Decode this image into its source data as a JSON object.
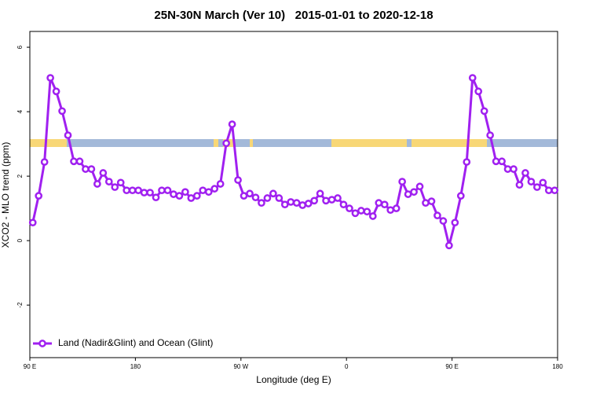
{
  "chart_data": {
    "type": "line",
    "title": "25N-30N March (Ver 10)   2015-01-01 to 2020-12-18",
    "xlabel": "Longitude (deg E)",
    "ylabel": "XCO2 - MLO trend (ppm)",
    "xlim": [
      90,
      540
    ],
    "xticks": [
      {
        "value": 90,
        "label": "90 E"
      },
      180,
      {
        "value": 270,
        "label": "90 W"
      },
      {
        "value": 360,
        "label": "0"
      },
      {
        "value": 450,
        "label": "90 E"
      },
      {
        "value": 540,
        "label": "180"
      }
    ],
    "ylim": [
      -3.63,
      6.49
    ],
    "yticks": [
      -2,
      0,
      2,
      4,
      6
    ],
    "legend": "bottomleft",
    "series": [
      {
        "name": "Land (Nadir&Glint) and Ocean (Glint)",
        "color": "#a020f0",
        "x": [
          92.5,
          97.5,
          102.5,
          107.5,
          112.5,
          117.5,
          122.5,
          127.5,
          132.5,
          137.5,
          142.5,
          147.5,
          152.5,
          157.5,
          162.5,
          167.5,
          172.5,
          177.5,
          182.5,
          187.5,
          192.5,
          197.5,
          202.5,
          207.5,
          212.5,
          217.5,
          222.5,
          227.5,
          232.5,
          237.5,
          242.5,
          247.5,
          252.5,
          257.5,
          262.5,
          267.5,
          272.5,
          277.5,
          282.5,
          287.5,
          292.5,
          297.5,
          302.5,
          307.5,
          312.5,
          317.5,
          322.5,
          327.5,
          332.5,
          337.5,
          342.5,
          347.5,
          352.5,
          357.5,
          362.5,
          367.5,
          372.5,
          377.5,
          382.5,
          387.5,
          392.5,
          397.5,
          402.5,
          407.5,
          412.5,
          417.5,
          422.5,
          427.5,
          432.5,
          437.5,
          442.5,
          447.5,
          452.5,
          457.5,
          462.5,
          467.5,
          472.5,
          477.5,
          482.5,
          487.5,
          492.5,
          497.5,
          502.5,
          507.5,
          512.5,
          517.5,
          522.5,
          527.5,
          532.5,
          537.5
        ],
        "values": [
          0.56,
          1.39,
          2.44,
          5.05,
          4.63,
          4.02,
          3.27,
          2.46,
          2.46,
          2.22,
          2.22,
          1.76,
          2.1,
          1.83,
          1.66,
          1.8,
          1.56,
          1.56,
          1.56,
          1.49,
          1.49,
          1.34,
          1.56,
          1.56,
          1.44,
          1.39,
          1.51,
          1.32,
          1.39,
          1.56,
          1.51,
          1.61,
          1.76,
          3.02,
          3.61,
          1.88,
          1.39,
          1.46,
          1.34,
          1.17,
          1.32,
          1.46,
          1.32,
          1.12,
          1.2,
          1.17,
          1.1,
          1.15,
          1.24,
          1.46,
          1.24,
          1.27,
          1.32,
          1.12,
          1.0,
          0.85,
          0.93,
          0.9,
          0.76,
          1.17,
          1.12,
          0.95,
          1.0,
          1.83,
          1.44,
          1.51,
          1.68,
          1.17,
          1.22,
          0.78,
          0.61,
          -0.15,
          0.56,
          1.39,
          2.44,
          5.05,
          4.63,
          4.02,
          3.27,
          2.46,
          2.46,
          2.22,
          2.22,
          1.73,
          2.1,
          1.83,
          1.66,
          1.8,
          1.56,
          1.56
        ]
      }
    ]
  }
}
